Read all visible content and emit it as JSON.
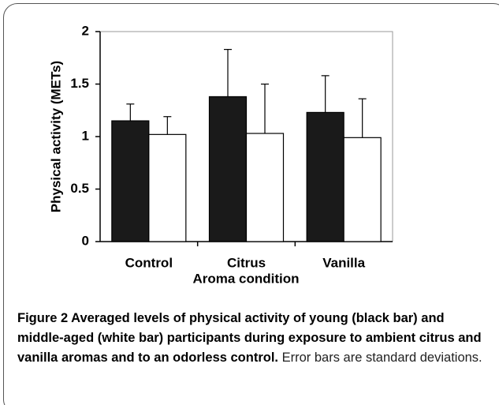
{
  "chart_data": {
    "type": "bar",
    "y_label": "Physical activity (METs)",
    "x_label": "Aroma condition",
    "categories": [
      "Control",
      "Citrus",
      "Vanilla"
    ],
    "series": [
      {
        "color": "#1a1a1a",
        "values": [
          1.15,
          1.38,
          1.23
        ],
        "errors": [
          0.16,
          0.45,
          0.35
        ]
      },
      {
        "color": "#ffffff",
        "values": [
          1.02,
          1.03,
          0.99
        ],
        "errors": [
          0.17,
          0.47,
          0.37
        ]
      }
    ],
    "ylim": [
      0,
      2
    ],
    "yticks": [
      0,
      0.5,
      1,
      1.5,
      2
    ],
    "grid": false
  },
  "caption": {
    "title": "Figure 2 Averaged levels of physical activity of young (black bar) and middle-aged (white bar) participants during exposure to ambient citrus and vanilla aromas and to an odorless control.",
    "note": "Error bars are standard deviations."
  }
}
